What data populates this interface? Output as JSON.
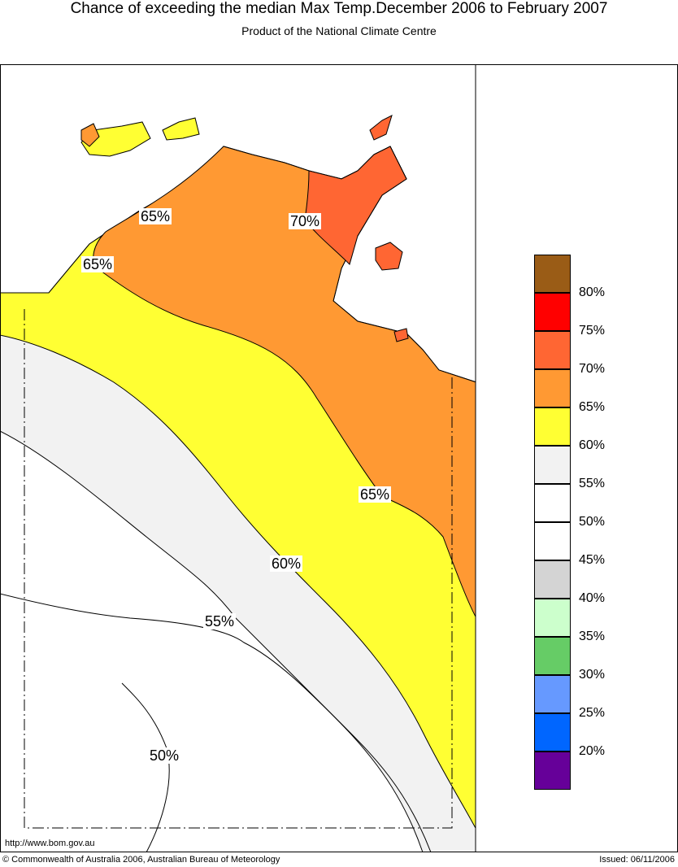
{
  "title": "Chance of exceeding the median Max Temp.December 2006 to February 2007",
  "subtitle": "Product of the National Climate Centre",
  "legend": {
    "items": [
      {
        "color": "#9a5c16",
        "label": ""
      },
      {
        "color": "#ff0000",
        "label": "80%"
      },
      {
        "color": "#ff6633",
        "label": "75%"
      },
      {
        "color": "#ff9933",
        "label": "70%"
      },
      {
        "color": "#ffff33",
        "label": "65%"
      },
      {
        "color": "#f2f2f2",
        "label": "60%"
      },
      {
        "color": "#ffffff",
        "label": "55%"
      },
      {
        "color": "#ffffff",
        "label": "50%"
      },
      {
        "color": "#d4d4d4",
        "label": "45%"
      },
      {
        "color": "#ccffcc",
        "label": "40%"
      },
      {
        "color": "#66cc66",
        "label": "35%"
      },
      {
        "color": "#6699ff",
        "label": "30%"
      },
      {
        "color": "#0066ff",
        "label": "25%"
      },
      {
        "color": "#660099",
        "label": "20%"
      }
    ]
  },
  "contour_labels": [
    {
      "text": "65%"
    },
    {
      "text": "65%"
    },
    {
      "text": "70%"
    },
    {
      "text": "65%"
    },
    {
      "text": "60%"
    },
    {
      "text": "55%"
    },
    {
      "text": "50%"
    }
  ],
  "footer": {
    "url": "http://www.bom.gov.au",
    "copyright": "© Commonwealth of Australia 2006, Australian Bureau of Meteorology",
    "issued": "Issued: 06/11/2006"
  }
}
